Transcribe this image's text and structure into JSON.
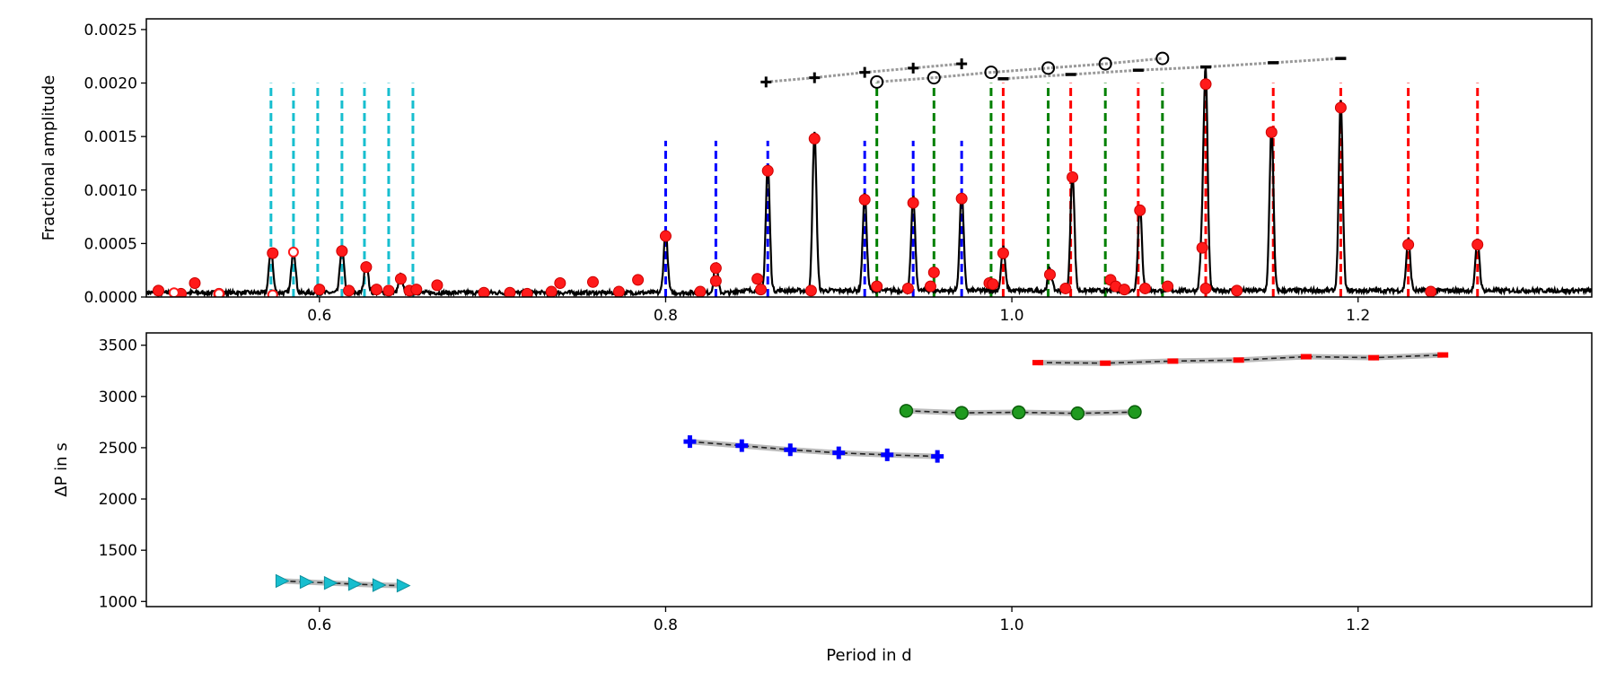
{
  "chart_data": [
    {
      "type": "line",
      "ylabel": "Fractional amplitude",
      "xlabel": "",
      "xlim": [
        0.5,
        1.335
      ],
      "ylim": [
        0,
        0.0026
      ],
      "xticks": [
        0.6,
        0.8,
        1.0,
        1.2
      ],
      "xtick_labels": [
        "0.6",
        "0.8",
        "1.0",
        "1.2"
      ],
      "yticks": [
        0,
        0.0005,
        0.001,
        0.0015,
        0.002,
        0.0025
      ],
      "ytick_labels": [
        "0.0000",
        "0.0005",
        "0.0010",
        "0.0015",
        "0.0020",
        "0.0025"
      ],
      "spectrum_peaks": [
        [
          0.572,
          0.00041
        ],
        [
          0.585,
          0.00042
        ],
        [
          0.613,
          0.00043
        ],
        [
          0.627,
          0.00028
        ],
        [
          0.647,
          0.00017
        ],
        [
          0.8,
          0.00057
        ],
        [
          0.829,
          0.00027
        ],
        [
          0.859,
          0.00118
        ],
        [
          0.886,
          0.00148
        ],
        [
          0.915,
          0.00091
        ],
        [
          0.943,
          0.00088
        ],
        [
          0.971,
          0.00092
        ],
        [
          0.995,
          0.00041
        ],
        [
          1.022,
          0.00021
        ],
        [
          1.035,
          0.00112
        ],
        [
          1.074,
          0.00081
        ],
        [
          1.11,
          0.00046
        ],
        [
          1.112,
          0.00199
        ],
        [
          1.15,
          0.00154
        ],
        [
          1.19,
          0.00177
        ],
        [
          1.229,
          0.00049
        ],
        [
          1.269,
          0.00049
        ]
      ],
      "identified_peaks": [
        [
          0.507,
          6e-05
        ],
        [
          0.52,
          3e-05
        ],
        [
          0.528,
          0.00013
        ],
        [
          0.542,
          3e-05
        ],
        [
          0.573,
          0.00041
        ],
        [
          0.613,
          0.00043
        ],
        [
          0.627,
          0.00028
        ],
        [
          0.6,
          7e-05
        ],
        [
          0.617,
          6e-05
        ],
        [
          0.633,
          7e-05
        ],
        [
          0.64,
          6e-05
        ],
        [
          0.647,
          0.00017
        ],
        [
          0.652,
          6e-05
        ],
        [
          0.656,
          7e-05
        ],
        [
          0.668,
          0.00011
        ],
        [
          0.695,
          4e-05
        ],
        [
          0.71,
          4e-05
        ],
        [
          0.72,
          3e-05
        ],
        [
          0.734,
          5e-05
        ],
        [
          0.739,
          0.00013
        ],
        [
          0.758,
          0.00014
        ],
        [
          0.773,
          5e-05
        ],
        [
          0.784,
          0.00016
        ],
        [
          0.8,
          0.00057
        ],
        [
          0.82,
          5e-05
        ],
        [
          0.829,
          0.00027
        ],
        [
          0.829,
          0.00015
        ],
        [
          0.853,
          0.00017
        ],
        [
          0.855,
          7e-05
        ],
        [
          0.859,
          0.00118
        ],
        [
          0.886,
          0.00148
        ],
        [
          0.884,
          6e-05
        ],
        [
          0.915,
          0.00091
        ],
        [
          0.922,
          0.0001
        ],
        [
          0.943,
          0.00088
        ],
        [
          0.94,
          8e-05
        ],
        [
          0.955,
          0.00023
        ],
        [
          0.953,
          0.0001
        ],
        [
          0.971,
          0.00092
        ],
        [
          0.987,
          0.00013
        ],
        [
          0.989,
          0.00012
        ],
        [
          0.995,
          0.00041
        ],
        [
          1.022,
          0.00021
        ],
        [
          1.035,
          0.00112
        ],
        [
          1.031,
          8e-05
        ],
        [
          1.057,
          0.00016
        ],
        [
          1.06,
          0.0001
        ],
        [
          1.065,
          7e-05
        ],
        [
          1.074,
          0.00081
        ],
        [
          1.077,
          8e-05
        ],
        [
          1.09,
          0.0001
        ],
        [
          1.11,
          0.00046
        ],
        [
          1.112,
          0.00199
        ],
        [
          1.112,
          8e-05
        ],
        [
          1.13,
          6e-05
        ],
        [
          1.15,
          0.00154
        ],
        [
          1.19,
          0.00177
        ],
        [
          1.229,
          0.00049
        ],
        [
          1.242,
          5e-05
        ],
        [
          1.269,
          0.00049
        ]
      ],
      "open_markers": [
        [
          0.516,
          4e-05
        ],
        [
          0.542,
          3e-05
        ],
        [
          0.585,
          0.00042
        ],
        [
          0.573,
          2e-05
        ]
      ],
      "series": [
        {
          "name": "cyan series",
          "color": "#17becf",
          "x": [
            0.572,
            0.585,
            0.599,
            0.613,
            0.626,
            0.64,
            0.654
          ],
          "ymax": 0.002
        },
        {
          "name": "blue series",
          "color": "#0000ff",
          "x": [
            0.8,
            0.829,
            0.859,
            0.915,
            0.943,
            0.971
          ],
          "ymax": 0.00146
        },
        {
          "name": "green series",
          "color": "#008000",
          "x": [
            0.922,
            0.955,
            0.988,
            1.021,
            1.054,
            1.087
          ],
          "ymax": 0.002
        },
        {
          "name": "red series",
          "color": "#ff0000",
          "x": [
            0.995,
            1.034,
            1.073,
            1.112,
            1.151,
            1.19,
            1.229,
            1.269
          ],
          "ymax": 0.002
        }
      ],
      "comb_plus": [
        [
          0.858,
          0.00201
        ],
        [
          0.886,
          0.00205
        ],
        [
          0.915,
          0.0021
        ],
        [
          0.943,
          0.00214
        ],
        [
          0.971,
          0.00218
        ]
      ],
      "comb_circle": [
        [
          0.922,
          0.00201
        ],
        [
          0.955,
          0.00205
        ],
        [
          0.988,
          0.0021
        ],
        [
          1.021,
          0.00214
        ],
        [
          1.054,
          0.00218
        ],
        [
          1.087,
          0.00223
        ]
      ],
      "comb_dash": [
        [
          0.995,
          0.00204
        ],
        [
          1.034,
          0.00208
        ],
        [
          1.073,
          0.00212
        ],
        [
          1.112,
          0.00215
        ],
        [
          1.151,
          0.00219
        ],
        [
          1.19,
          0.00223
        ]
      ]
    },
    {
      "type": "scatter",
      "xlabel": "Period in d",
      "ylabel": "ΔP in s",
      "xlim": [
        0.5,
        1.335
      ],
      "ylim": [
        950,
        3620
      ],
      "xticks": [
        0.6,
        0.8,
        1.0,
        1.2
      ],
      "xtick_labels": [
        "0.6",
        "0.8",
        "1.0",
        "1.2"
      ],
      "yticks": [
        1000,
        1500,
        2000,
        2500,
        3000,
        3500
      ],
      "ytick_labels": [
        "1000",
        "1500",
        "2000",
        "2500",
        "3000",
        "3500"
      ],
      "series": [
        {
          "name": "cyan series",
          "marker": "triangle",
          "color": "#17becf",
          "x": [
            0.578,
            0.592,
            0.606,
            0.62,
            0.634,
            0.648
          ],
          "y": [
            1200,
            1190,
            1180,
            1170,
            1160,
            1155
          ]
        },
        {
          "name": "blue series",
          "marker": "plus",
          "color": "#0000ff",
          "x": [
            0.814,
            0.844,
            0.872,
            0.9,
            0.928,
            0.957
          ],
          "y": [
            2560,
            2520,
            2480,
            2450,
            2430,
            2415
          ]
        },
        {
          "name": "green series",
          "marker": "circle",
          "color": "#008000",
          "x": [
            0.939,
            0.971,
            1.004,
            1.038,
            1.071
          ],
          "y": [
            2860,
            2840,
            2845,
            2835,
            2848
          ]
        },
        {
          "name": "red series",
          "marker": "dash",
          "color": "#ff0000",
          "x": [
            1.015,
            1.054,
            1.093,
            1.131,
            1.17,
            1.209,
            1.249
          ],
          "y": [
            3330,
            3325,
            3345,
            3355,
            3388,
            3378,
            3405
          ]
        }
      ]
    }
  ]
}
